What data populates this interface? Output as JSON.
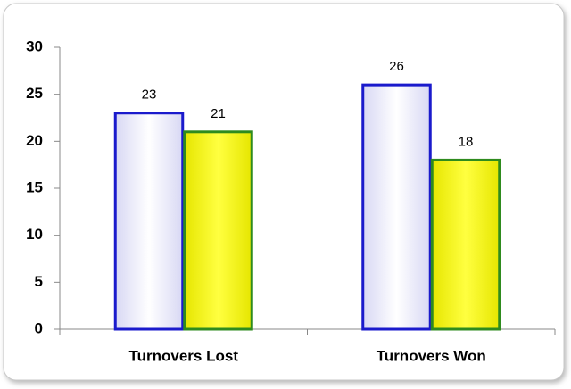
{
  "chart_data": {
    "type": "bar",
    "categories": [
      "Turnovers Lost",
      "Turnovers Won"
    ],
    "series": [
      {
        "color": "#ffffff",
        "edgecolor": "#1a1acc",
        "values": [
          23,
          26
        ]
      },
      {
        "color": "#ffff00",
        "edgecolor": "#2e8b1e",
        "values": [
          21,
          18
        ]
      }
    ],
    "ylim": [
      0,
      30
    ],
    "yticks": [
      0,
      5,
      10,
      15,
      20,
      25,
      30
    ],
    "grid": false
  }
}
